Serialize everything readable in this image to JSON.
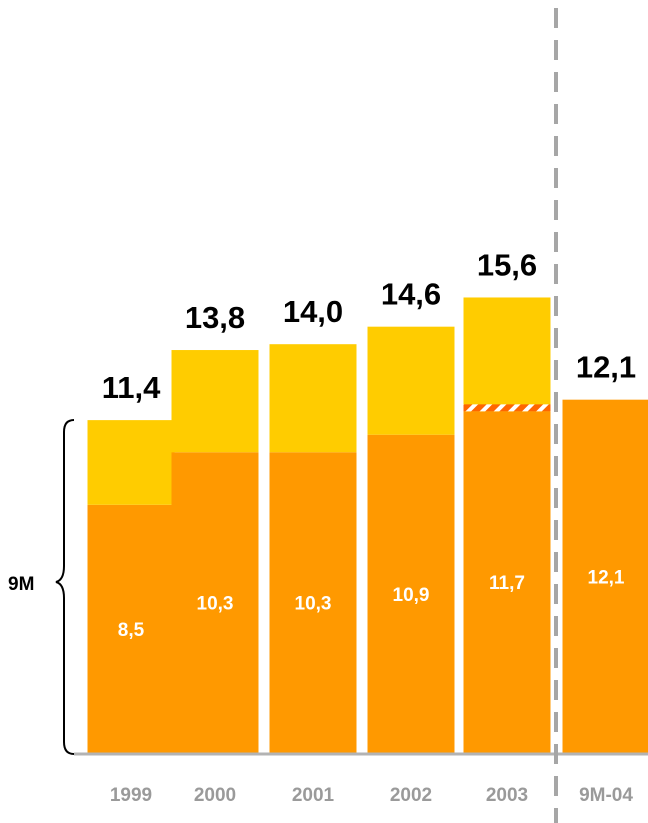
{
  "chart_data": {
    "type": "bar",
    "stacked": true,
    "categories": [
      "1999",
      "2000",
      "2001",
      "2002",
      "2003",
      "9M-04"
    ],
    "series": [
      {
        "values": [
          8.5,
          10.3,
          10.3,
          10.9,
          11.7,
          12.1
        ],
        "value_labels": [
          "8,5",
          "10,3",
          "10,3",
          "10,9",
          "11,7",
          "12,1"
        ]
      },
      {
        "values": [
          2.9,
          3.5,
          3.7,
          3.7,
          3.9,
          0
        ]
      }
    ],
    "totals": [
      11.4,
      13.8,
      14.0,
      14.6,
      15.6,
      12.1
    ],
    "total_labels": [
      "11,4",
      "13,8",
      "14,0",
      "14,6",
      "15,6",
      "12,1"
    ],
    "bracket_label": "9M",
    "ylim": [
      0,
      16.5
    ],
    "grid": false,
    "legend": "none",
    "separator": "dashed vertical line between 2003 and 9M-04",
    "colors": {
      "lower": "#ff9900",
      "upper": "#ffcc00",
      "hatch_accent": "#ff6600",
      "tick_text": "#9a9a9a",
      "axis": "#b3b3b3",
      "separator": "#a6a6a6"
    }
  }
}
